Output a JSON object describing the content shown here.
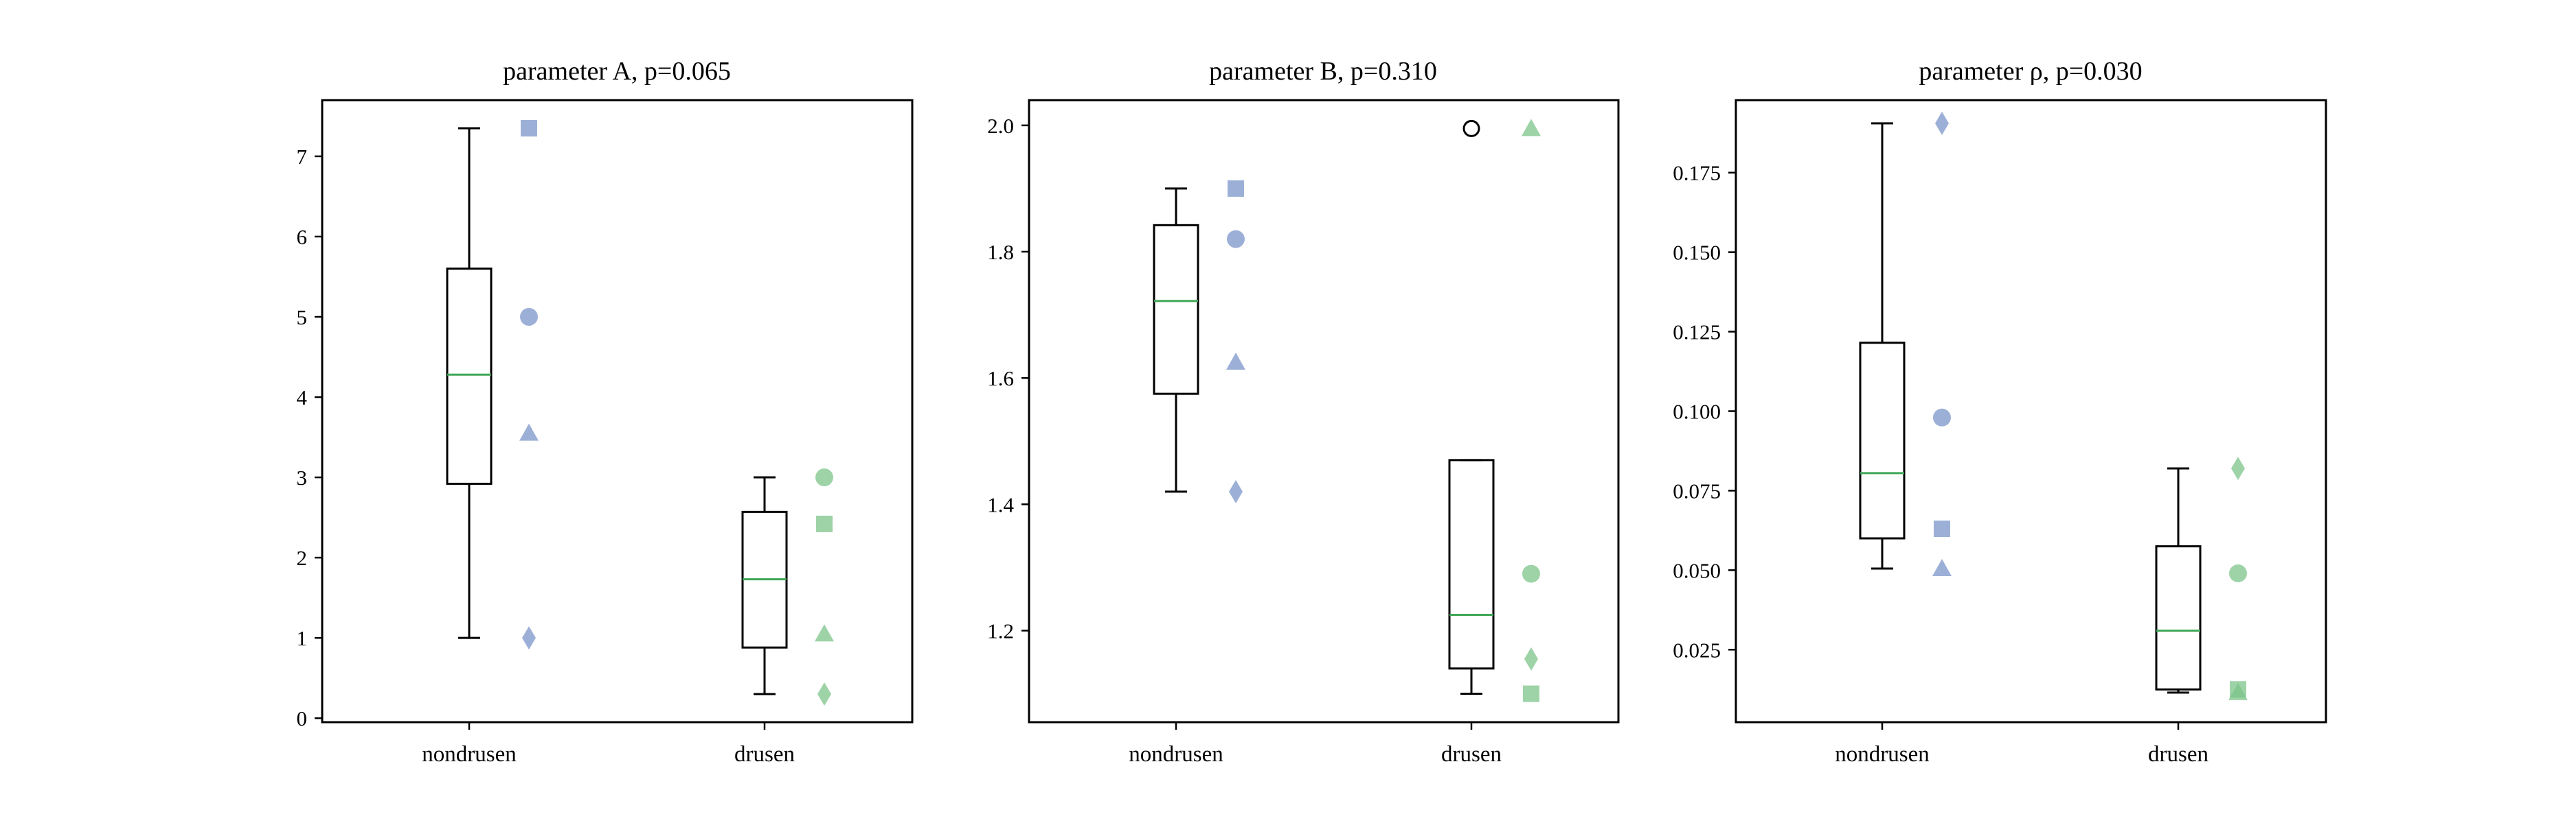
{
  "colors": {
    "nondrusen": "#7b96c9",
    "drusen": "#7cc48a",
    "median": "#3fa757",
    "box": "#000000",
    "outlier": "#000000"
  },
  "chart_data": [
    {
      "type": "box",
      "title": "parameter A, p=0.065",
      "xlabel": "",
      "ylabel": "",
      "categories": [
        "nondrusen",
        "drusen"
      ],
      "ylim": [
        -0.05,
        7.7
      ],
      "yticks": [
        0,
        1,
        2,
        3,
        4,
        5,
        6,
        7
      ],
      "tick_labels": [
        "0",
        "1",
        "2",
        "3",
        "4",
        "5",
        "6",
        "7"
      ],
      "grid": false,
      "boxes": [
        {
          "category": "nondrusen",
          "whisker_low": 1.0,
          "q1": 2.92,
          "median": 4.28,
          "q3": 5.6,
          "whisker_high": 7.35,
          "outliers": []
        },
        {
          "category": "drusen",
          "whisker_low": 0.3,
          "q1": 0.88,
          "median": 1.73,
          "q3": 2.57,
          "whisker_high": 3.0,
          "outliers": []
        }
      ],
      "points": [
        {
          "category": "nondrusen",
          "marker": "square",
          "value": 7.35
        },
        {
          "category": "nondrusen",
          "marker": "circle",
          "value": 5.0
        },
        {
          "category": "nondrusen",
          "marker": "triangle",
          "value": 3.55
        },
        {
          "category": "nondrusen",
          "marker": "diamond",
          "value": 1.0
        },
        {
          "category": "drusen",
          "marker": "circle",
          "value": 3.0
        },
        {
          "category": "drusen",
          "marker": "square",
          "value": 2.42
        },
        {
          "category": "drusen",
          "marker": "triangle",
          "value": 1.05
        },
        {
          "category": "drusen",
          "marker": "diamond",
          "value": 0.3
        }
      ]
    },
    {
      "type": "box",
      "title": "parameter B, p=0.310",
      "xlabel": "",
      "ylabel": "",
      "categories": [
        "nondrusen",
        "drusen"
      ],
      "ylim": [
        1.055,
        2.04
      ],
      "yticks": [
        1.2,
        1.4,
        1.6,
        1.8,
        2.0
      ],
      "tick_labels": [
        "1.2",
        "1.4",
        "1.6",
        "1.8",
        "2.0"
      ],
      "grid": false,
      "boxes": [
        {
          "category": "nondrusen",
          "whisker_low": 1.42,
          "q1": 1.575,
          "median": 1.722,
          "q3": 1.842,
          "whisker_high": 1.9,
          "outliers": []
        },
        {
          "category": "drusen",
          "whisker_low": 1.1,
          "q1": 1.14,
          "median": 1.225,
          "q3": 1.47,
          "whisker_high": 1.47,
          "outliers": [
            1.995
          ]
        }
      ],
      "points": [
        {
          "category": "nondrusen",
          "marker": "square",
          "value": 1.9
        },
        {
          "category": "nondrusen",
          "marker": "circle",
          "value": 1.82
        },
        {
          "category": "nondrusen",
          "marker": "triangle",
          "value": 1.625
        },
        {
          "category": "nondrusen",
          "marker": "diamond",
          "value": 1.42
        },
        {
          "category": "drusen",
          "marker": "triangle",
          "value": 1.995
        },
        {
          "category": "drusen",
          "marker": "circle",
          "value": 1.29
        },
        {
          "category": "drusen",
          "marker": "diamond",
          "value": 1.155
        },
        {
          "category": "drusen",
          "marker": "square",
          "value": 1.1
        }
      ]
    },
    {
      "type": "box",
      "title": "parameter ρ, p=0.030",
      "xlabel": "",
      "ylabel": "",
      "categories": [
        "nondrusen",
        "drusen"
      ],
      "ylim": [
        0.0022,
        0.1978
      ],
      "yticks": [
        0.025,
        0.05,
        0.075,
        0.1,
        0.125,
        0.15,
        0.175
      ],
      "tick_labels": [
        "0.025",
        "0.050",
        "0.075",
        "0.100",
        "0.125",
        "0.150",
        "0.175"
      ],
      "grid": false,
      "boxes": [
        {
          "category": "nondrusen",
          "whisker_low": 0.0505,
          "q1": 0.06,
          "median": 0.0805,
          "q3": 0.1215,
          "whisker_high": 0.1905,
          "outliers": []
        },
        {
          "category": "drusen",
          "whisker_low": 0.0115,
          "q1": 0.0125,
          "median": 0.031,
          "q3": 0.0575,
          "whisker_high": 0.082,
          "outliers": []
        }
      ],
      "points": [
        {
          "category": "nondrusen",
          "marker": "diamond",
          "value": 0.1905
        },
        {
          "category": "nondrusen",
          "marker": "circle",
          "value": 0.098
        },
        {
          "category": "nondrusen",
          "marker": "square",
          "value": 0.063
        },
        {
          "category": "nondrusen",
          "marker": "triangle",
          "value": 0.0505
        },
        {
          "category": "drusen",
          "marker": "diamond",
          "value": 0.082
        },
        {
          "category": "drusen",
          "marker": "circle",
          "value": 0.049
        },
        {
          "category": "drusen",
          "marker": "square",
          "value": 0.0125
        },
        {
          "category": "drusen",
          "marker": "triangle",
          "value": 0.0115
        }
      ]
    }
  ]
}
